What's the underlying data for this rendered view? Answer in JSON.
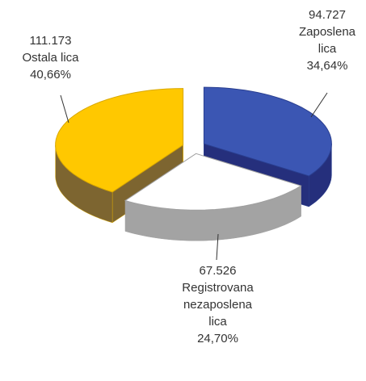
{
  "chart_data": {
    "type": "pie3d",
    "categories": [
      "Zaposlena lica",
      "Registrovana nezaposlena lica",
      "Ostala lica"
    ],
    "values": [
      94727,
      67526,
      111173
    ],
    "value_labels": [
      "94.727",
      "67.526",
      "111.173"
    ],
    "percentages": [
      34.64,
      24.7,
      40.66
    ],
    "percent_labels": [
      "34,64%",
      "24,70%",
      "40,66%"
    ],
    "colors": [
      "#3b56b3",
      "#ffffff",
      "#ffc800"
    ]
  }
}
